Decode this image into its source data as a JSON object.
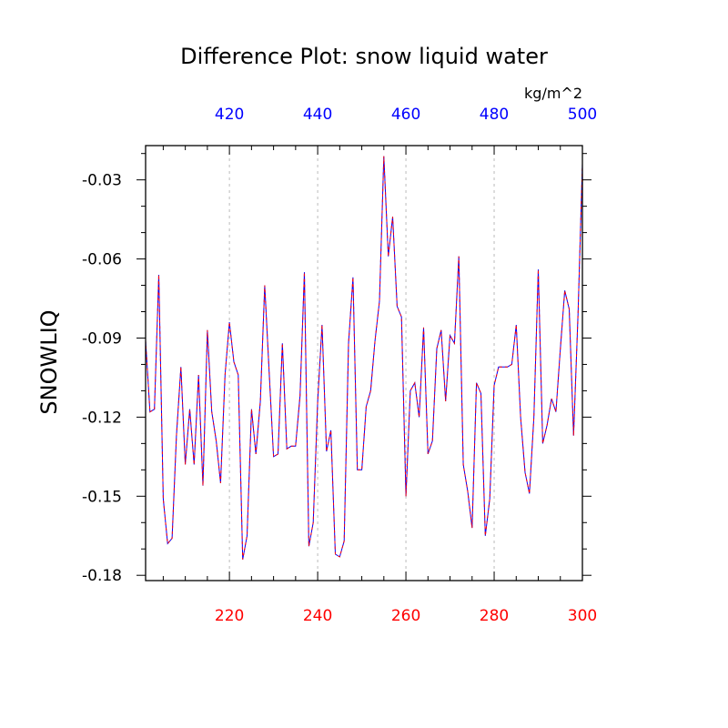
{
  "chart_data": {
    "type": "line",
    "title": "Difference Plot: snow liquid water",
    "ylabel": "SNOWLIQ",
    "units_label": "kg/m^2",
    "xlim": [
      201,
      300
    ],
    "ylim": [
      -0.182,
      -0.017
    ],
    "x_ticks": [
      220,
      240,
      260,
      280,
      300
    ],
    "x_tick_labels": [
      "220",
      "240",
      "260",
      "280",
      "300"
    ],
    "x_top_ticks": [
      220,
      240,
      260,
      280,
      300
    ],
    "x_top_tick_labels": [
      "420",
      "440",
      "460",
      "480",
      "500"
    ],
    "y_ticks": [
      -0.18,
      -0.15,
      -0.12,
      -0.09,
      -0.06,
      -0.03
    ],
    "y_tick_labels": [
      "-0.18",
      "-0.15",
      "-0.12",
      "-0.09",
      "-0.06",
      "-0.03"
    ],
    "grid": "vertical dashed at major x ticks",
    "colors": {
      "bottom_axis_labels": "#ff0000",
      "top_axis_labels": "#0000ff",
      "series_a": "#0000ff",
      "series_b": "#ff0000",
      "grid": "#bbbbbb"
    },
    "x": [
      201,
      202,
      203,
      204,
      205,
      206,
      207,
      208,
      209,
      210,
      211,
      212,
      213,
      214,
      215,
      216,
      217,
      218,
      219,
      220,
      221,
      222,
      223,
      224,
      225,
      226,
      227,
      228,
      229,
      230,
      231,
      232,
      233,
      234,
      235,
      236,
      237,
      238,
      239,
      240,
      241,
      242,
      243,
      244,
      245,
      246,
      247,
      248,
      249,
      250,
      251,
      252,
      253,
      254,
      255,
      256,
      257,
      258,
      259,
      260,
      261,
      262,
      263,
      264,
      265,
      266,
      267,
      268,
      269,
      270,
      271,
      272,
      273,
      274,
      275,
      276,
      277,
      278,
      279,
      280,
      281,
      282,
      283,
      284,
      285,
      286,
      287,
      288,
      289,
      290,
      291,
      292,
      293,
      294,
      295,
      296,
      297,
      298,
      299,
      300
    ],
    "values": [
      -0.091,
      -0.118,
      -0.117,
      -0.066,
      -0.151,
      -0.168,
      -0.166,
      -0.127,
      -0.101,
      -0.138,
      -0.117,
      -0.138,
      -0.104,
      -0.146,
      -0.087,
      -0.118,
      -0.129,
      -0.145,
      -0.104,
      -0.084,
      -0.099,
      -0.104,
      -0.174,
      -0.165,
      -0.117,
      -0.134,
      -0.114,
      -0.07,
      -0.103,
      -0.135,
      -0.134,
      -0.092,
      -0.132,
      -0.131,
      -0.131,
      -0.112,
      -0.065,
      -0.169,
      -0.16,
      -0.114,
      -0.085,
      -0.133,
      -0.125,
      -0.172,
      -0.173,
      -0.167,
      -0.092,
      -0.067,
      -0.14,
      -0.14,
      -0.116,
      -0.11,
      -0.091,
      -0.076,
      -0.021,
      -0.059,
      -0.044,
      -0.078,
      -0.082,
      -0.15,
      -0.11,
      -0.107,
      -0.12,
      -0.086,
      -0.134,
      -0.129,
      -0.094,
      -0.087,
      -0.114,
      -0.089,
      -0.092,
      -0.059,
      -0.138,
      -0.148,
      -0.162,
      -0.107,
      -0.111,
      -0.165,
      -0.151,
      -0.108,
      -0.101,
      -0.101,
      -0.101,
      -0.1,
      -0.085,
      -0.12,
      -0.141,
      -0.149,
      -0.12,
      -0.064,
      -0.13,
      -0.123,
      -0.113,
      -0.118,
      -0.094,
      -0.072,
      -0.079,
      -0.127,
      -0.081,
      -0.024
    ]
  }
}
